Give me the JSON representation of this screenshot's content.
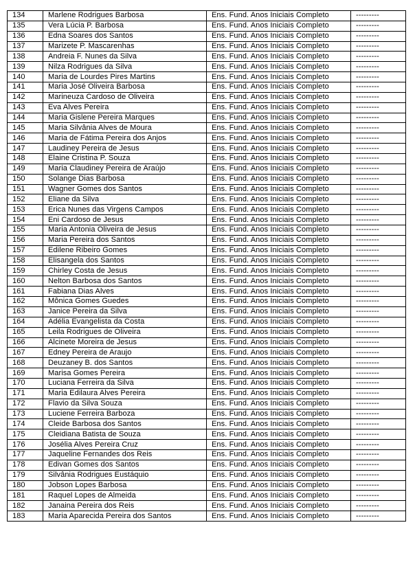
{
  "table": {
    "columns": [
      "number",
      "name",
      "education",
      "status"
    ],
    "education_label": "Ens. Fund. Anos Iniciais Completo",
    "status_label": "---------",
    "rows": [
      {
        "num": "134",
        "name": "Marlene Rodrigues Barbosa",
        "education": "Ens. Fund. Anos Iniciais Completo",
        "status": "---------"
      },
      {
        "num": "135",
        "name": "Vera Lúcia P. Barbosa",
        "education": "Ens. Fund. Anos Iniciais Completo",
        "status": "---------"
      },
      {
        "num": "136",
        "name": "Edna Soares dos Santos",
        "education": "Ens. Fund. Anos Iniciais Completo",
        "status": "---------"
      },
      {
        "num": "137",
        "name": "Marizete P. Mascarenhas",
        "education": "Ens. Fund. Anos Iniciais Completo",
        "status": "---------"
      },
      {
        "num": "138",
        "name": "Andreia F. Nunes da Silva",
        "education": "Ens. Fund. Anos Iniciais Completo",
        "status": "---------"
      },
      {
        "num": "139",
        "name": "Nilza Rodrigues da Silva",
        "education": "Ens. Fund. Anos Iniciais Completo",
        "status": "---------"
      },
      {
        "num": "140",
        "name": "Maria de Lourdes Pires Martins",
        "education": "Ens. Fund. Anos Iniciais Completo",
        "status": "---------"
      },
      {
        "num": "141",
        "name": "Maria José Oliveira Barbosa",
        "education": "Ens. Fund. Anos Iniciais Completo",
        "status": "---------"
      },
      {
        "num": "142",
        "name": "Marineuza Cardoso de Oliveira",
        "education": "Ens. Fund. Anos Iniciais Completo",
        "status": "---------"
      },
      {
        "num": "143",
        "name": "Eva Alves Pereira",
        "education": "Ens. Fund. Anos Iniciais Completo",
        "status": "---------"
      },
      {
        "num": "144",
        "name": "Maria Gislene Pereira Marques",
        "education": "Ens. Fund. Anos Iniciais Completo",
        "status": "---------"
      },
      {
        "num": "145",
        "name": "Maria Silvânia Alves de Moura",
        "education": "Ens. Fund. Anos Iniciais Completo",
        "status": "---------"
      },
      {
        "num": "146",
        "name": "Maria de Fátima Pereira dos Anjos",
        "education": "Ens. Fund. Anos Iniciais Completo",
        "status": "---------"
      },
      {
        "num": "147",
        "name": "Laudiney Pereira de Jesus",
        "education": "Ens. Fund. Anos Iniciais Completo",
        "status": "---------"
      },
      {
        "num": "148",
        "name": "Elaine Cristina P. Souza",
        "education": "Ens. Fund. Anos Iniciais Completo",
        "status": "---------"
      },
      {
        "num": "149",
        "name": "Maria Claudiney Pereira de Araújo",
        "education": "Ens. Fund. Anos Iniciais Completo",
        "status": "---------"
      },
      {
        "num": "150",
        "name": "Solange Dias Barbosa",
        "education": "Ens. Fund. Anos Iniciais Completo",
        "status": "---------"
      },
      {
        "num": "151",
        "name": "Wagner Gomes dos Santos",
        "education": "Ens. Fund. Anos Iniciais Completo",
        "status": "---------"
      },
      {
        "num": "152",
        "name": "Eliane da Silva",
        "education": "Ens. Fund. Anos Iniciais Completo",
        "status": "---------"
      },
      {
        "num": "153",
        "name": "Erica Nunes das Virgens Campos",
        "education": "Ens. Fund. Anos Iniciais Completo",
        "status": "---------"
      },
      {
        "num": "154",
        "name": "Eni Cardoso de Jesus",
        "education": "Ens. Fund. Anos Iniciais Completo",
        "status": "---------"
      },
      {
        "num": "155",
        "name": "Maria Antonia Oliveira de Jesus",
        "education": "Ens. Fund. Anos Iniciais Completo",
        "status": "---------"
      },
      {
        "num": "156",
        "name": "Maria Pereira dos Santos",
        "education": "Ens. Fund. Anos Iniciais Completo",
        "status": "---------"
      },
      {
        "num": "157",
        "name": "Edilene Ribeiro Gomes",
        "education": "Ens. Fund. Anos Iniciais Completo",
        "status": "---------"
      },
      {
        "num": "158",
        "name": "Elisangela dos Santos",
        "education": "Ens. Fund. Anos Iniciais Completo",
        "status": "---------"
      },
      {
        "num": "159",
        "name": "Chirley Costa de Jesus",
        "education": "Ens. Fund. Anos Iniciais Completo",
        "status": "---------"
      },
      {
        "num": "160",
        "name": "Nelton Barbosa dos Santos",
        "education": "Ens. Fund. Anos Iniciais Completo",
        "status": "---------"
      },
      {
        "num": "161",
        "name": "Fabiana Dias Alves",
        "education": "Ens. Fund. Anos Iniciais Completo",
        "status": "---------"
      },
      {
        "num": "162",
        "name": "Mônica Gomes Guedes",
        "education": "Ens. Fund. Anos Iniciais Completo",
        "status": "---------"
      },
      {
        "num": "163",
        "name": "Janice Pereira da Silva",
        "education": "Ens. Fund. Anos Iniciais Completo",
        "status": "---------"
      },
      {
        "num": "164",
        "name": "Adélia Evangelista da Costa",
        "education": "Ens. Fund. Anos Iniciais Completo",
        "status": "---------"
      },
      {
        "num": "165",
        "name": "Leila Rodrigues de Oliveira",
        "education": "Ens. Fund. Anos Iniciais Completo",
        "status": "---------"
      },
      {
        "num": "166",
        "name": "Alcinete Moreira de Jesus",
        "education": "Ens. Fund. Anos Iniciais Completo",
        "status": "---------"
      },
      {
        "num": "167",
        "name": "Edney Pereira de Araujo",
        "education": "Ens. Fund. Anos Iniciais Completo",
        "status": "---------"
      },
      {
        "num": "168",
        "name": "Deuzaney B. dos Santos",
        "education": "Ens. Fund. Anos Iniciais Completo",
        "status": "---------"
      },
      {
        "num": "169",
        "name": "Marisa Gomes Pereira",
        "education": "Ens. Fund. Anos Iniciais Completo",
        "status": "---------"
      },
      {
        "num": "170",
        "name": "Luciana Ferreira da Silva",
        "education": "Ens. Fund. Anos Iniciais Completo",
        "status": "---------"
      },
      {
        "num": "171",
        "name": "Maria Edilaura Alves Pereira",
        "education": "Ens. Fund. Anos Iniciais Completo",
        "status": "---------"
      },
      {
        "num": "172",
        "name": "Flavio da Silva Souza",
        "education": "Ens. Fund. Anos Iniciais Completo",
        "status": "---------"
      },
      {
        "num": "173",
        "name": "Luciene Ferreira Barboza",
        "education": "Ens. Fund. Anos Iniciais Completo",
        "status": "---------"
      },
      {
        "num": "174",
        "name": "Cleide Barbosa dos Santos",
        "education": "Ens. Fund. Anos Iniciais Completo",
        "status": "---------"
      },
      {
        "num": "175",
        "name": "Cleidiana Batista de Souza",
        "education": "Ens. Fund. Anos Iniciais Completo",
        "status": "---------"
      },
      {
        "num": "176",
        "name": "Josélia Alves Pereira Cruz",
        "education": "Ens. Fund. Anos Iniciais Completo",
        "status": "---------"
      },
      {
        "num": "177",
        "name": "Jaqueline Fernandes dos Reis",
        "education": "Ens. Fund. Anos Iniciais Completo",
        "status": "---------"
      },
      {
        "num": "178",
        "name": "Edivan Gomes dos Santos",
        "education": "Ens. Fund. Anos Iniciais Completo",
        "status": "---------"
      },
      {
        "num": "179",
        "name": "Silvânia Rodrigues Eustáquio",
        "education": "Ens. Fund. Anos Iniciais Completo",
        "status": "---------"
      },
      {
        "num": "180",
        "name": "Jobson Lopes Barbosa",
        "education": "Ens. Fund. Anos Iniciais Completo",
        "status": "---------"
      },
      {
        "num": "181",
        "name": "Raquel Lopes de Almeida",
        "education": "Ens. Fund. Anos Iniciais Completo",
        "status": "---------"
      },
      {
        "num": "182",
        "name": "Janaina Pereira dos Reis",
        "education": "Ens. Fund. Anos Iniciais Completo",
        "status": "---------"
      },
      {
        "num": "183",
        "name": "Maria Aparecida Pereira dos Santos",
        "education": "Ens. Fund. Anos Iniciais Completo",
        "status": "---------"
      }
    ]
  }
}
